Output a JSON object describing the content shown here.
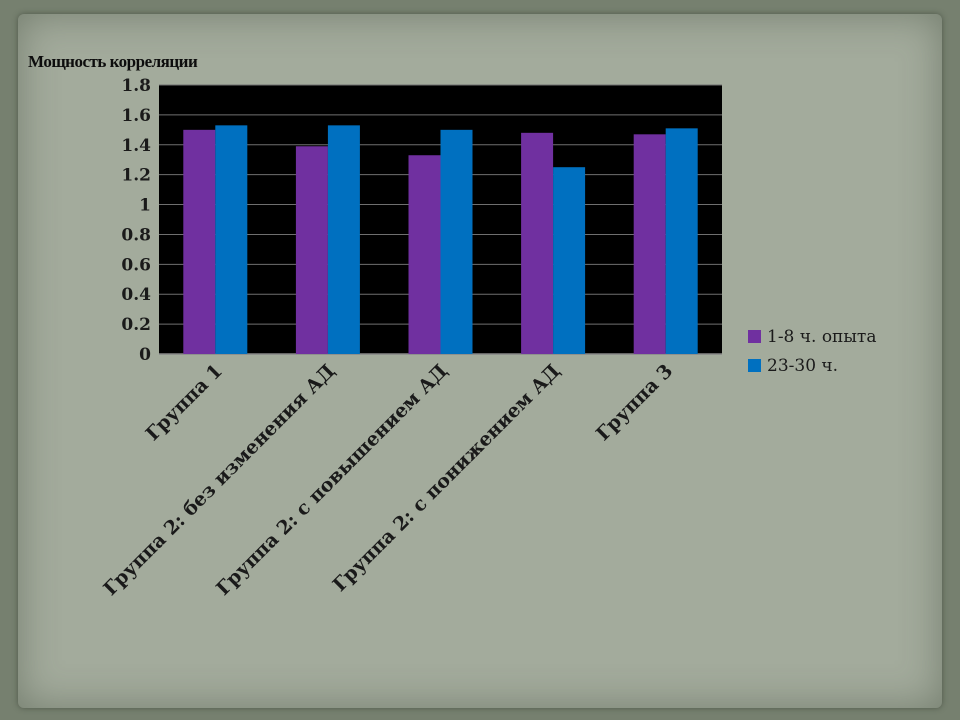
{
  "chart_data": {
    "type": "bar",
    "title": "Мощность корреляции",
    "categories": [
      "Группа 1",
      "Группа 2: без изменения АД",
      "Группа 2: с повышением АД",
      "Группа 2: с понижением АД",
      "Группа 3"
    ],
    "series": [
      {
        "name": "1-8 ч. опыта",
        "color": "#7030a0",
        "values": [
          1.5,
          1.39,
          1.33,
          1.48,
          1.47
        ]
      },
      {
        "name": "23-30 ч.",
        "color": "#0070c0",
        "values": [
          1.53,
          1.53,
          1.5,
          1.25,
          1.51
        ]
      }
    ],
    "ylim": [
      0,
      1.8
    ],
    "yticks": [
      "0",
      "0.2",
      "0.4",
      "0.6",
      "0.8",
      "1",
      "1.2",
      "1.4",
      "1.6",
      "1.8"
    ],
    "grid": true,
    "legend": "right",
    "plot_background": "#000000"
  }
}
